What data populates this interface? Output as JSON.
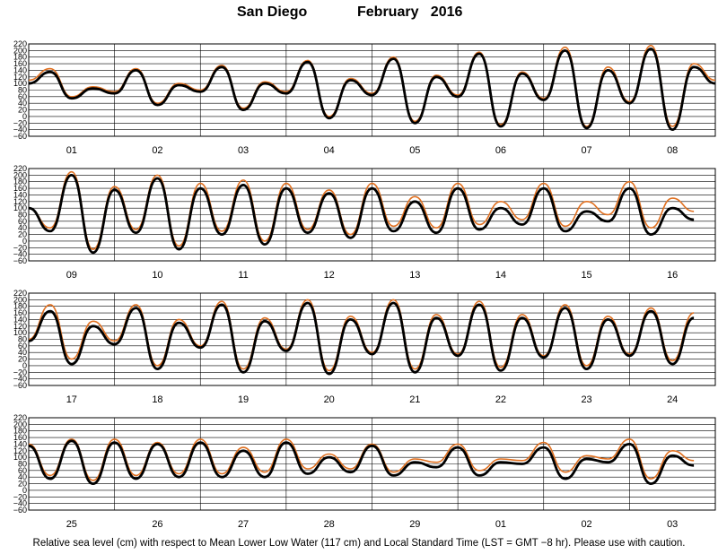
{
  "header": {
    "location": "San Diego",
    "period": "February   2016"
  },
  "footer": {
    "note": "Relative sea level (cm) with respect to Mean Lower Low Water (117 cm) and Local Standard Time (LST = GMT −8 hr). Please use with caution."
  },
  "colors": {
    "observed": "#000000",
    "predicted": "#e07020",
    "grid": "#000000"
  },
  "chart_data": [
    {
      "type": "line",
      "title": "",
      "xlabel": "",
      "ylabel": "",
      "ylim": [
        -60,
        220
      ],
      "yticks": [
        220,
        200,
        180,
        160,
        140,
        120,
        100,
        80,
        60,
        40,
        20,
        0,
        -20,
        -40,
        -60
      ],
      "grid": true,
      "categories": [
        "01",
        "02",
        "03",
        "04",
        "05",
        "06",
        "07",
        "08"
      ],
      "series": [
        {
          "values": [
            [
              0.0,
              100
            ],
            [
              0.5,
              135
            ],
            [
              1.0,
              55
            ],
            [
              1.5,
              85
            ],
            [
              2.0,
              70
            ],
            [
              2.5,
              140
            ],
            [
              3.0,
              35
            ],
            [
              3.5,
              95
            ],
            [
              4.0,
              75
            ],
            [
              4.5,
              150
            ],
            [
              5.0,
              20
            ],
            [
              5.5,
              100
            ],
            [
              6.0,
              70
            ],
            [
              6.5,
              165
            ],
            [
              7.0,
              -5
            ],
            [
              7.5,
              110
            ],
            [
              8.0,
              65
            ],
            [
              8.5,
              175
            ],
            [
              9.0,
              -20
            ],
            [
              9.5,
              120
            ],
            [
              10.0,
              60
            ],
            [
              10.5,
              190
            ],
            [
              11.0,
              -30
            ],
            [
              11.5,
              130
            ],
            [
              12.0,
              50
            ],
            [
              12.5,
              200
            ],
            [
              13.0,
              -35
            ],
            [
              13.5,
              140
            ],
            [
              14.0,
              40
            ],
            [
              14.5,
              205
            ],
            [
              15.0,
              -40
            ],
            [
              15.5,
              150
            ],
            [
              16.0,
              100
            ]
          ]
        },
        {
          "values": [
            [
              0.0,
              110
            ],
            [
              0.5,
              145
            ],
            [
              1.0,
              60
            ],
            [
              1.5,
              90
            ],
            [
              2.0,
              75
            ],
            [
              2.5,
              145
            ],
            [
              3.0,
              40
            ],
            [
              3.5,
              100
            ],
            [
              4.0,
              80
            ],
            [
              4.5,
              155
            ],
            [
              5.0,
              25
            ],
            [
              5.5,
              105
            ],
            [
              6.0,
              75
            ],
            [
              6.5,
              170
            ],
            [
              7.0,
              0
            ],
            [
              7.5,
              115
            ],
            [
              8.0,
              70
            ],
            [
              8.5,
              180
            ],
            [
              9.0,
              -15
            ],
            [
              9.5,
              125
            ],
            [
              10.0,
              65
            ],
            [
              10.5,
              195
            ],
            [
              11.0,
              -25
            ],
            [
              11.5,
              135
            ],
            [
              12.0,
              55
            ],
            [
              12.5,
              210
            ],
            [
              13.0,
              -30
            ],
            [
              13.5,
              150
            ],
            [
              14.0,
              45
            ],
            [
              14.5,
              215
            ],
            [
              15.0,
              -30
            ],
            [
              15.5,
              160
            ],
            [
              16.0,
              110
            ]
          ]
        }
      ]
    },
    {
      "type": "line",
      "title": "",
      "xlabel": "",
      "ylabel": "",
      "ylim": [
        -60,
        220
      ],
      "yticks": [
        220,
        200,
        180,
        160,
        140,
        120,
        100,
        80,
        60,
        40,
        20,
        0,
        -20,
        -40,
        -60
      ],
      "grid": true,
      "categories": [
        "09",
        "10",
        "11",
        "12",
        "13",
        "14",
        "15",
        "16"
      ],
      "series": [
        {
          "values": [
            [
              0.0,
              100
            ],
            [
              0.5,
              30
            ],
            [
              1.0,
              200
            ],
            [
              1.5,
              -35
            ],
            [
              2.0,
              155
            ],
            [
              2.5,
              25
            ],
            [
              3.0,
              190
            ],
            [
              3.5,
              -25
            ],
            [
              4.0,
              160
            ],
            [
              4.5,
              20
            ],
            [
              5.0,
              170
            ],
            [
              5.5,
              -10
            ],
            [
              6.0,
              160
            ],
            [
              6.5,
              25
            ],
            [
              7.0,
              145
            ],
            [
              7.5,
              10
            ],
            [
              8.0,
              160
            ],
            [
              8.5,
              30
            ],
            [
              9.0,
              120
            ],
            [
              9.5,
              25
            ],
            [
              10.0,
              160
            ],
            [
              10.5,
              35
            ],
            [
              11.0,
              100
            ],
            [
              11.5,
              50
            ],
            [
              12.0,
              160
            ],
            [
              12.5,
              30
            ],
            [
              13.0,
              90
            ],
            [
              13.5,
              60
            ],
            [
              14.0,
              160
            ],
            [
              14.5,
              20
            ],
            [
              15.0,
              100
            ],
            [
              15.5,
              65
            ]
          ]
        },
        {
          "values": [
            [
              0.0,
              100
            ],
            [
              0.5,
              40
            ],
            [
              1.0,
              210
            ],
            [
              1.5,
              -25
            ],
            [
              2.0,
              165
            ],
            [
              2.5,
              35
            ],
            [
              3.0,
              200
            ],
            [
              3.5,
              -15
            ],
            [
              4.0,
              175
            ],
            [
              4.5,
              30
            ],
            [
              5.0,
              185
            ],
            [
              5.5,
              0
            ],
            [
              6.0,
              175
            ],
            [
              6.5,
              35
            ],
            [
              7.0,
              155
            ],
            [
              7.5,
              20
            ],
            [
              8.0,
              175
            ],
            [
              8.5,
              45
            ],
            [
              9.0,
              135
            ],
            [
              9.5,
              40
            ],
            [
              10.0,
              175
            ],
            [
              10.5,
              50
            ],
            [
              11.0,
              120
            ],
            [
              11.5,
              65
            ],
            [
              12.0,
              175
            ],
            [
              12.5,
              45
            ],
            [
              13.0,
              120
            ],
            [
              13.5,
              80
            ],
            [
              14.0,
              180
            ],
            [
              14.5,
              40
            ],
            [
              15.0,
              130
            ],
            [
              15.5,
              90
            ]
          ]
        }
      ]
    },
    {
      "type": "line",
      "title": "",
      "xlabel": "",
      "ylabel": "",
      "ylim": [
        -60,
        220
      ],
      "yticks": [
        220,
        200,
        180,
        160,
        140,
        120,
        100,
        80,
        60,
        40,
        20,
        0,
        -20,
        -40,
        -60
      ],
      "grid": true,
      "categories": [
        "17",
        "18",
        "19",
        "20",
        "21",
        "22",
        "23",
        "24"
      ],
      "series": [
        {
          "values": [
            [
              0.0,
              75
            ],
            [
              0.5,
              165
            ],
            [
              1.0,
              5
            ],
            [
              1.5,
              120
            ],
            [
              2.0,
              65
            ],
            [
              2.5,
              175
            ],
            [
              3.0,
              -10
            ],
            [
              3.5,
              130
            ],
            [
              4.0,
              55
            ],
            [
              4.5,
              185
            ],
            [
              5.0,
              -20
            ],
            [
              5.5,
              135
            ],
            [
              6.0,
              45
            ],
            [
              6.5,
              190
            ],
            [
              7.0,
              -25
            ],
            [
              7.5,
              140
            ],
            [
              8.0,
              35
            ],
            [
              8.5,
              190
            ],
            [
              9.0,
              -20
            ],
            [
              9.5,
              145
            ],
            [
              10.0,
              30
            ],
            [
              10.5,
              185
            ],
            [
              11.0,
              -15
            ],
            [
              11.5,
              145
            ],
            [
              12.0,
              25
            ],
            [
              12.5,
              175
            ],
            [
              13.0,
              -10
            ],
            [
              13.5,
              140
            ],
            [
              14.0,
              30
            ],
            [
              14.5,
              165
            ],
            [
              15.0,
              5
            ],
            [
              15.5,
              145
            ]
          ]
        },
        {
          "values": [
            [
              0.0,
              80
            ],
            [
              0.5,
              185
            ],
            [
              1.0,
              20
            ],
            [
              1.5,
              135
            ],
            [
              2.0,
              75
            ],
            [
              2.5,
              185
            ],
            [
              3.0,
              0
            ],
            [
              3.5,
              140
            ],
            [
              4.0,
              60
            ],
            [
              4.5,
              195
            ],
            [
              5.0,
              -10
            ],
            [
              5.5,
              145
            ],
            [
              6.0,
              50
            ],
            [
              6.5,
              200
            ],
            [
              7.0,
              -15
            ],
            [
              7.5,
              150
            ],
            [
              8.0,
              40
            ],
            [
              8.5,
              200
            ],
            [
              9.0,
              -10
            ],
            [
              9.5,
              155
            ],
            [
              10.0,
              35
            ],
            [
              10.5,
              195
            ],
            [
              11.0,
              -5
            ],
            [
              11.5,
              155
            ],
            [
              12.0,
              30
            ],
            [
              12.5,
              185
            ],
            [
              13.0,
              0
            ],
            [
              13.5,
              150
            ],
            [
              14.0,
              35
            ],
            [
              14.5,
              175
            ],
            [
              15.0,
              15
            ],
            [
              15.5,
              160
            ]
          ]
        }
      ]
    },
    {
      "type": "line",
      "title": "",
      "xlabel": "",
      "ylabel": "",
      "ylim": [
        -60,
        220
      ],
      "yticks": [
        220,
        200,
        180,
        160,
        140,
        120,
        100,
        80,
        60,
        40,
        20,
        0,
        -20,
        -40,
        -60
      ],
      "grid": true,
      "categories": [
        "25",
        "26",
        "27",
        "28",
        "29",
        "01",
        "02",
        "03"
      ],
      "series": [
        {
          "values": [
            [
              0.0,
              135
            ],
            [
              0.5,
              35
            ],
            [
              1.0,
              150
            ],
            [
              1.5,
              20
            ],
            [
              2.0,
              145
            ],
            [
              2.5,
              35
            ],
            [
              3.0,
              140
            ],
            [
              3.5,
              40
            ],
            [
              4.0,
              145
            ],
            [
              4.5,
              40
            ],
            [
              5.0,
              120
            ],
            [
              5.5,
              40
            ],
            [
              6.0,
              145
            ],
            [
              6.5,
              50
            ],
            [
              7.0,
              100
            ],
            [
              7.5,
              55
            ],
            [
              8.0,
              135
            ],
            [
              8.5,
              45
            ],
            [
              9.0,
              85
            ],
            [
              9.5,
              70
            ],
            [
              10.0,
              130
            ],
            [
              10.5,
              45
            ],
            [
              11.0,
              85
            ],
            [
              11.5,
              80
            ],
            [
              12.0,
              130
            ],
            [
              12.5,
              35
            ],
            [
              13.0,
              95
            ],
            [
              13.5,
              85
            ],
            [
              14.0,
              140
            ],
            [
              14.5,
              20
            ],
            [
              15.0,
              105
            ],
            [
              15.5,
              75
            ]
          ]
        },
        {
          "values": [
            [
              0.0,
              140
            ],
            [
              0.5,
              45
            ],
            [
              1.0,
              155
            ],
            [
              1.5,
              30
            ],
            [
              2.0,
              155
            ],
            [
              2.5,
              45
            ],
            [
              3.0,
              145
            ],
            [
              3.5,
              50
            ],
            [
              4.0,
              155
            ],
            [
              4.5,
              50
            ],
            [
              5.0,
              130
            ],
            [
              5.5,
              55
            ],
            [
              6.0,
              155
            ],
            [
              6.5,
              65
            ],
            [
              7.0,
              110
            ],
            [
              7.5,
              65
            ],
            [
              8.0,
              140
            ],
            [
              8.5,
              55
            ],
            [
              9.0,
              95
            ],
            [
              9.5,
              85
            ],
            [
              10.0,
              140
            ],
            [
              10.5,
              60
            ],
            [
              11.0,
              95
            ],
            [
              11.5,
              90
            ],
            [
              12.0,
              145
            ],
            [
              12.5,
              55
            ],
            [
              13.0,
              105
            ],
            [
              13.5,
              95
            ],
            [
              14.0,
              155
            ],
            [
              14.5,
              35
            ],
            [
              15.0,
              120
            ],
            [
              15.5,
              90
            ]
          ]
        }
      ]
    }
  ]
}
